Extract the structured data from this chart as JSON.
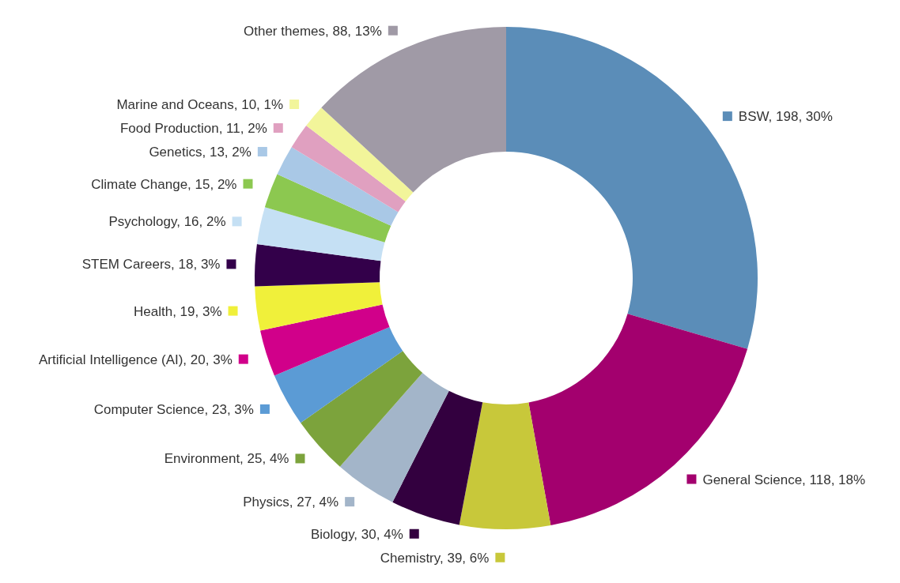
{
  "chart_data": {
    "type": "donut",
    "categories": [
      "BSW",
      "General Science",
      "Chemistry",
      "Biology",
      "Physics",
      "Environment",
      "Computer Science",
      "Artificial Intelligence (AI)",
      "Health",
      "STEM Careers",
      "Psychology",
      "Climate Change",
      "Genetics",
      "Food Production",
      "Marine and Oceans",
      "Other themes"
    ],
    "values": [
      198,
      118,
      39,
      30,
      27,
      25,
      23,
      20,
      19,
      18,
      16,
      15,
      13,
      11,
      10,
      88
    ],
    "value_labels": [
      "198, 30%",
      "118, 18%",
      "39, 6%",
      "30, 4%",
      "27, 4%",
      "25, 4%",
      "23, 3%",
      "20, 3%",
      "19, 3%",
      "18, 3%",
      "16, 2%",
      "15, 2%",
      "13, 2%",
      "11, 2%",
      "10, 1%",
      "88, 13%"
    ],
    "colors": [
      "#5b8db8",
      "#a3006e",
      "#c8c83a",
      "#33003f",
      "#a3b5c9",
      "#7ca33c",
      "#5b9bd5",
      "#d1008a",
      "#f0f03a",
      "#33004a",
      "#c5e0f4",
      "#8cc850",
      "#a9c8e6",
      "#e0a0c0",
      "#f2f59a",
      "#a09aa6"
    ],
    "legend": "left"
  }
}
